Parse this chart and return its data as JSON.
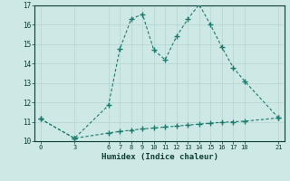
{
  "xlabel": "Humidex (Indice chaleur)",
  "bg_color": "#cde8e5",
  "line_color": "#1a7a6e",
  "grid_color": "#b8d8d5",
  "upper_line": {
    "x": [
      0,
      3,
      6,
      7,
      8,
      9,
      10,
      11,
      12,
      13,
      14,
      15,
      16,
      17,
      18,
      21
    ],
    "y": [
      11.15,
      10.15,
      11.85,
      14.75,
      16.3,
      16.55,
      14.7,
      14.2,
      15.4,
      16.3,
      17.05,
      16.0,
      14.85,
      13.8,
      13.1,
      11.2
    ]
  },
  "lower_line": {
    "x": [
      0,
      3,
      6,
      7,
      8,
      9,
      10,
      11,
      12,
      13,
      14,
      15,
      16,
      17,
      18,
      21
    ],
    "y": [
      11.15,
      10.15,
      10.42,
      10.5,
      10.57,
      10.63,
      10.68,
      10.73,
      10.78,
      10.83,
      10.88,
      10.93,
      10.97,
      11.0,
      11.03,
      11.2
    ]
  },
  "xlim": [
    -0.5,
    21.5
  ],
  "ylim": [
    10,
    17
  ],
  "xticks": [
    0,
    3,
    6,
    7,
    8,
    9,
    10,
    11,
    12,
    13,
    14,
    15,
    16,
    17,
    18,
    21
  ],
  "yticks": [
    10,
    11,
    12,
    13,
    14,
    15,
    16,
    17
  ]
}
